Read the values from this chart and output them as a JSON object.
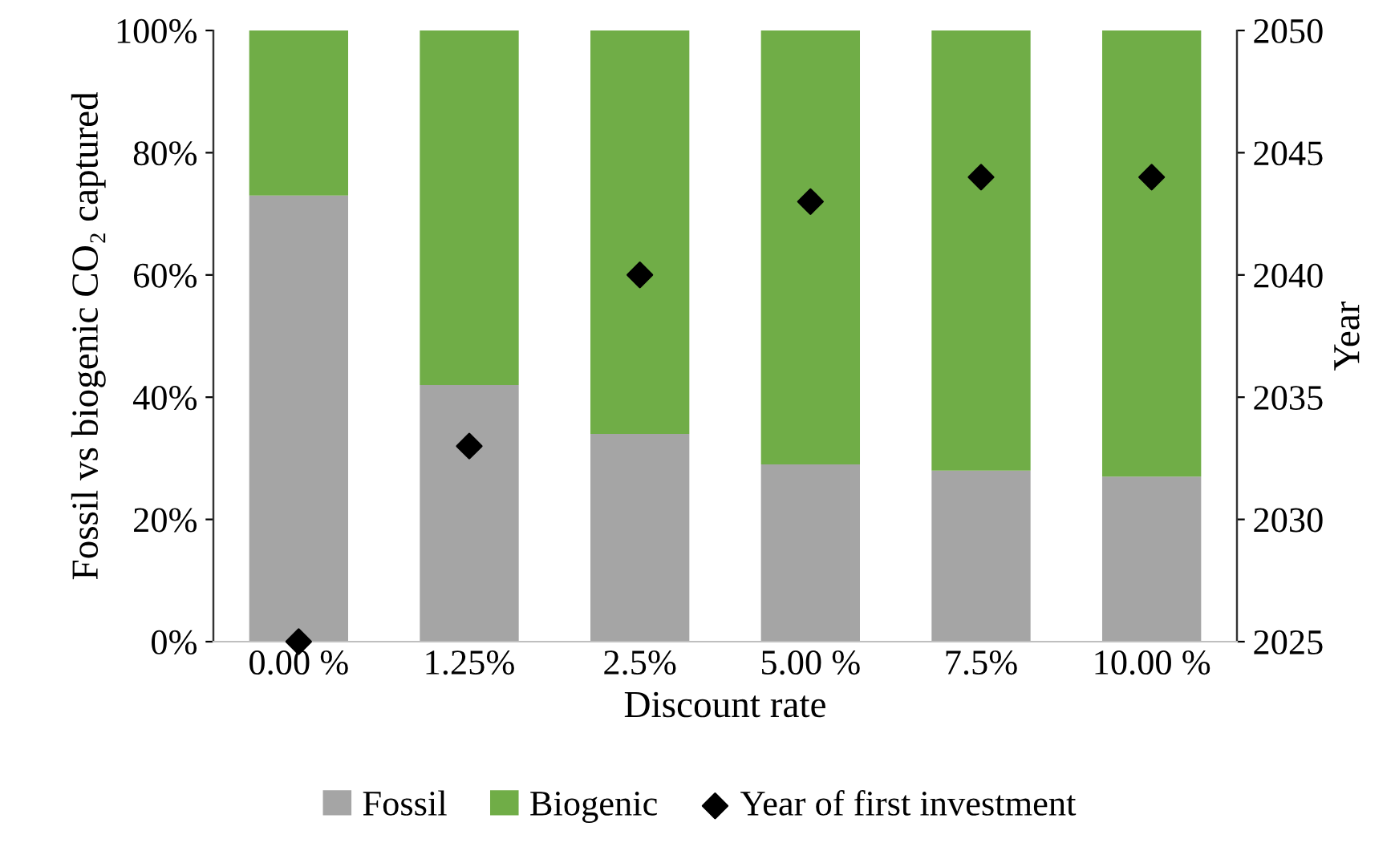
{
  "chart_data": {
    "type": "bar",
    "stacked": true,
    "xlabel": "Discount rate",
    "ylabel": "Fossil vs biogenic CO₂ captured",
    "y2label": "Year",
    "categories": [
      "0.00 %",
      "1.25%",
      "2.5%",
      "5.00 %",
      "7.5%",
      "10.00 %"
    ],
    "series": [
      {
        "name": "Fossil",
        "color": "#a5a5a5",
        "values": [
          73,
          42,
          34,
          29,
          28,
          27
        ]
      },
      {
        "name": "Biogenic",
        "color": "#70ad47",
        "values": [
          27,
          58,
          66,
          71,
          72,
          73
        ]
      },
      {
        "name": "Year of first investment",
        "type": "scatter",
        "axis": "y2",
        "color": "#000000",
        "marker": "diamond",
        "values": [
          2025,
          2033,
          2040,
          2043,
          2044,
          2044
        ]
      }
    ],
    "ylim": [
      0,
      100
    ],
    "yticks": [
      {
        "value": 0,
        "label": "0%"
      },
      {
        "value": 20,
        "label": "20%"
      },
      {
        "value": 40,
        "label": "40%"
      },
      {
        "value": 60,
        "label": "60%"
      },
      {
        "value": 80,
        "label": "80%"
      },
      {
        "value": 100,
        "label": "100%"
      }
    ],
    "y2lim": [
      2025,
      2050
    ],
    "y2ticks": [
      2025,
      2030,
      2035,
      2040,
      2045,
      2050
    ],
    "legend": "bottom",
    "grid": false
  }
}
